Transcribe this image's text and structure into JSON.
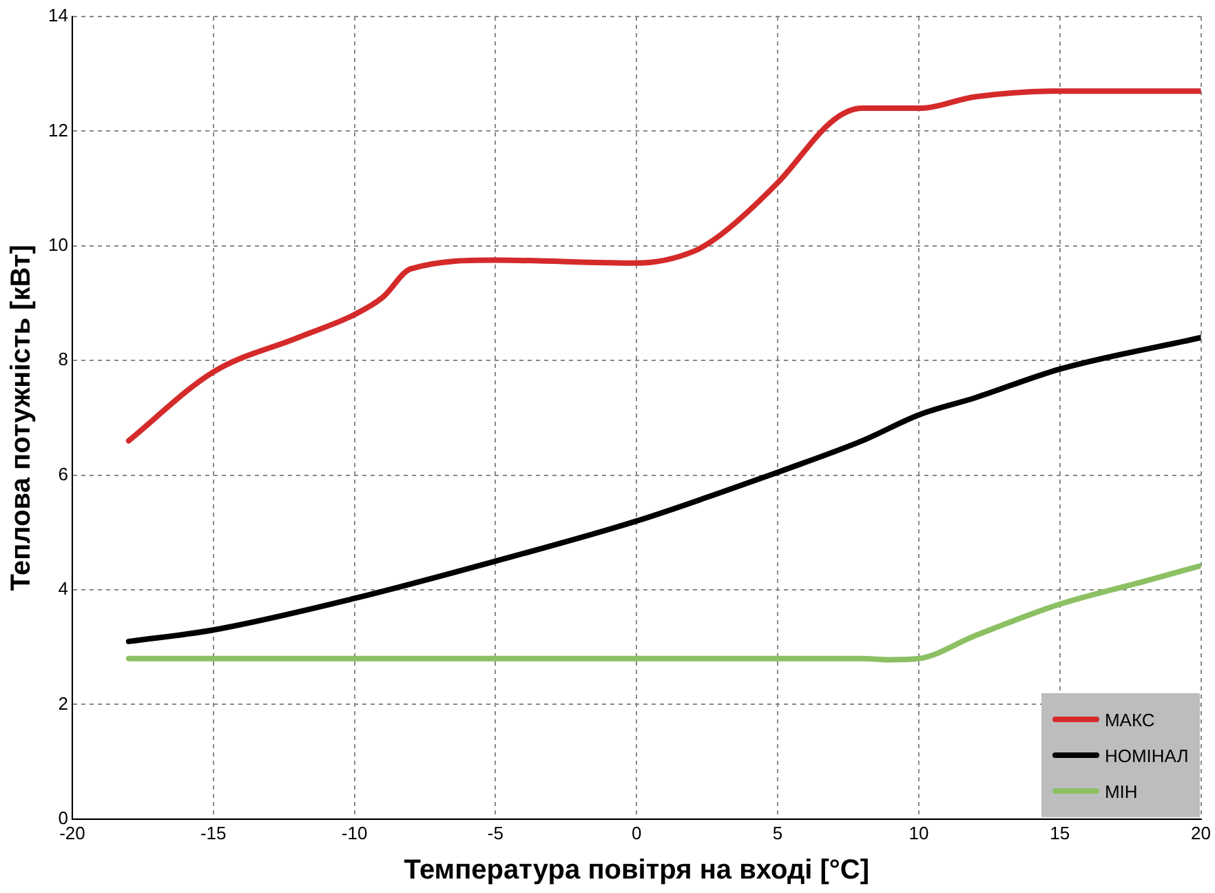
{
  "chart_data": {
    "type": "line",
    "xlabel": "Температура повітря на вході [°C]",
    "ylabel": "Теплова потужність [кВт]",
    "xlim": [
      -20,
      20
    ],
    "xticks": [
      -20,
      -15,
      -10,
      -5,
      0,
      5,
      10,
      15,
      20
    ],
    "ylim": [
      0,
      14
    ],
    "yticks": [
      0,
      2,
      4,
      6,
      8,
      10,
      12,
      14
    ],
    "grid": true,
    "legend": "bottom right",
    "marker": "none",
    "line_style": "solid",
    "series": [
      {
        "name": "МАКС",
        "color": "#d42a2a",
        "x": [
          -18,
          -15,
          -12,
          -10,
          -9,
          -8,
          -5,
          0,
          2,
          3,
          5,
          7,
          8,
          10,
          12,
          15,
          20
        ],
        "values": [
          6.6,
          7.8,
          8.4,
          8.8,
          9.1,
          9.6,
          9.75,
          9.7,
          9.9,
          10.2,
          11.1,
          12.2,
          12.4,
          12.4,
          12.6,
          12.7,
          12.7
        ]
      },
      {
        "name": "НОМІНАЛ",
        "color": "#000000",
        "x": [
          -18,
          -15,
          -10,
          -5,
          0,
          3,
          5,
          8,
          10,
          12,
          15,
          20
        ],
        "values": [
          3.1,
          3.3,
          3.85,
          4.5,
          5.2,
          5.7,
          6.05,
          6.6,
          7.05,
          7.35,
          7.85,
          8.4
        ]
      },
      {
        "name": "МІН",
        "color": "#8cc063",
        "x": [
          -18,
          -10,
          0,
          8,
          9,
          10,
          12,
          15,
          18,
          20
        ],
        "values": [
          2.8,
          2.8,
          2.8,
          2.8,
          2.78,
          2.8,
          3.2,
          3.75,
          4.15,
          4.42
        ]
      }
    ]
  }
}
